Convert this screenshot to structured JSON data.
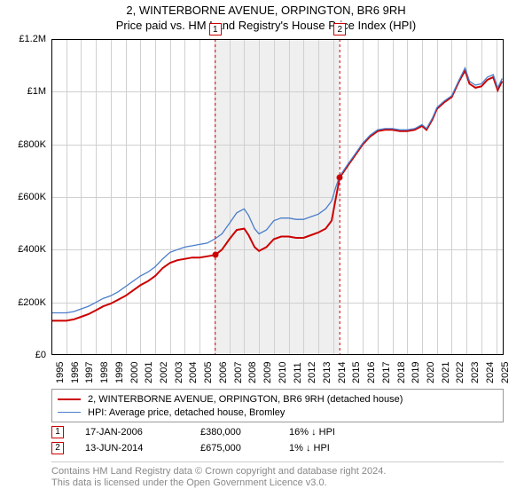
{
  "title_line1": "2, WINTERBORNE AVENUE, ORPINGTON, BR6 9RH",
  "title_line2": "Price paid vs. HM Land Registry's House Price Index (HPI)",
  "chart": {
    "type": "line",
    "x_start": 1995.0,
    "x_end": 2025.5,
    "y_start": 0,
    "y_end": 1200000,
    "y_ticks": [
      {
        "v": 0,
        "label": "£0"
      },
      {
        "v": 200000,
        "label": "£200K"
      },
      {
        "v": 400000,
        "label": "£400K"
      },
      {
        "v": 600000,
        "label": "£600K"
      },
      {
        "v": 800000,
        "label": "£800K"
      },
      {
        "v": 1000000,
        "label": "£1M"
      },
      {
        "v": 1200000,
        "label": "£1.2M"
      }
    ],
    "x_ticks": [
      1995,
      1996,
      1997,
      1998,
      1999,
      2000,
      2001,
      2002,
      2003,
      2004,
      2005,
      2006,
      2007,
      2008,
      2009,
      2010,
      2011,
      2012,
      2013,
      2014,
      2015,
      2016,
      2017,
      2018,
      2019,
      2020,
      2021,
      2022,
      2023,
      2024,
      2025
    ],
    "grid_color": "#d0d0d0",
    "background_color": "#ffffff",
    "series": [
      {
        "name": "property",
        "color": "#cc0000",
        "width": 2.0,
        "points": [
          [
            1995.0,
            130000
          ],
          [
            1995.5,
            130000
          ],
          [
            1996.0,
            130000
          ],
          [
            1996.5,
            135000
          ],
          [
            1997.0,
            145000
          ],
          [
            1997.5,
            155000
          ],
          [
            1998.0,
            170000
          ],
          [
            1998.5,
            185000
          ],
          [
            1999.0,
            195000
          ],
          [
            1999.5,
            210000
          ],
          [
            2000.0,
            225000
          ],
          [
            2000.5,
            245000
          ],
          [
            2001.0,
            265000
          ],
          [
            2001.5,
            280000
          ],
          [
            2002.0,
            300000
          ],
          [
            2002.5,
            330000
          ],
          [
            2003.0,
            350000
          ],
          [
            2003.5,
            360000
          ],
          [
            2004.0,
            365000
          ],
          [
            2004.5,
            370000
          ],
          [
            2005.0,
            370000
          ],
          [
            2005.5,
            375000
          ],
          [
            2006.05,
            380000
          ],
          [
            2006.5,
            400000
          ],
          [
            2007.0,
            440000
          ],
          [
            2007.5,
            475000
          ],
          [
            2008.0,
            480000
          ],
          [
            2008.3,
            455000
          ],
          [
            2008.7,
            410000
          ],
          [
            2009.0,
            395000
          ],
          [
            2009.5,
            410000
          ],
          [
            2010.0,
            440000
          ],
          [
            2010.5,
            450000
          ],
          [
            2011.0,
            450000
          ],
          [
            2011.5,
            445000
          ],
          [
            2012.0,
            445000
          ],
          [
            2012.5,
            455000
          ],
          [
            2013.0,
            465000
          ],
          [
            2013.5,
            480000
          ],
          [
            2013.9,
            510000
          ],
          [
            2014.2,
            600000
          ],
          [
            2014.45,
            675000
          ],
          [
            2014.7,
            695000
          ],
          [
            2015.0,
            720000
          ],
          [
            2015.5,
            760000
          ],
          [
            2016.0,
            800000
          ],
          [
            2016.5,
            830000
          ],
          [
            2017.0,
            850000
          ],
          [
            2017.5,
            855000
          ],
          [
            2018.0,
            855000
          ],
          [
            2018.5,
            850000
          ],
          [
            2019.0,
            850000
          ],
          [
            2019.5,
            855000
          ],
          [
            2020.0,
            870000
          ],
          [
            2020.3,
            855000
          ],
          [
            2020.7,
            895000
          ],
          [
            2021.0,
            935000
          ],
          [
            2021.5,
            960000
          ],
          [
            2022.0,
            980000
          ],
          [
            2022.5,
            1040000
          ],
          [
            2022.9,
            1080000
          ],
          [
            2023.2,
            1030000
          ],
          [
            2023.6,
            1015000
          ],
          [
            2024.0,
            1020000
          ],
          [
            2024.4,
            1045000
          ],
          [
            2024.8,
            1055000
          ],
          [
            2025.1,
            1005000
          ],
          [
            2025.4,
            1040000
          ]
        ]
      },
      {
        "name": "hpi",
        "color": "#4a7dc9",
        "width": 1.3,
        "points": [
          [
            1995.0,
            160000
          ],
          [
            1995.5,
            160000
          ],
          [
            1996.0,
            160000
          ],
          [
            1996.5,
            165000
          ],
          [
            1997.0,
            175000
          ],
          [
            1997.5,
            185000
          ],
          [
            1998.0,
            200000
          ],
          [
            1998.5,
            215000
          ],
          [
            1999.0,
            225000
          ],
          [
            1999.5,
            240000
          ],
          [
            2000.0,
            260000
          ],
          [
            2000.5,
            280000
          ],
          [
            2001.0,
            300000
          ],
          [
            2001.5,
            315000
          ],
          [
            2002.0,
            335000
          ],
          [
            2002.5,
            365000
          ],
          [
            2003.0,
            390000
          ],
          [
            2003.5,
            400000
          ],
          [
            2004.0,
            410000
          ],
          [
            2004.5,
            415000
          ],
          [
            2005.0,
            420000
          ],
          [
            2005.5,
            425000
          ],
          [
            2006.0,
            440000
          ],
          [
            2006.5,
            460000
          ],
          [
            2007.0,
            500000
          ],
          [
            2007.5,
            540000
          ],
          [
            2008.0,
            555000
          ],
          [
            2008.3,
            530000
          ],
          [
            2008.7,
            480000
          ],
          [
            2009.0,
            460000
          ],
          [
            2009.5,
            475000
          ],
          [
            2010.0,
            510000
          ],
          [
            2010.5,
            520000
          ],
          [
            2011.0,
            520000
          ],
          [
            2011.5,
            515000
          ],
          [
            2012.0,
            515000
          ],
          [
            2012.5,
            525000
          ],
          [
            2013.0,
            535000
          ],
          [
            2013.5,
            555000
          ],
          [
            2013.9,
            585000
          ],
          [
            2014.2,
            640000
          ],
          [
            2014.45,
            680000
          ],
          [
            2014.7,
            700000
          ],
          [
            2015.0,
            725000
          ],
          [
            2015.5,
            765000
          ],
          [
            2016.0,
            805000
          ],
          [
            2016.5,
            835000
          ],
          [
            2017.0,
            855000
          ],
          [
            2017.5,
            860000
          ],
          [
            2018.0,
            860000
          ],
          [
            2018.5,
            855000
          ],
          [
            2019.0,
            855000
          ],
          [
            2019.5,
            860000
          ],
          [
            2020.0,
            875000
          ],
          [
            2020.3,
            860000
          ],
          [
            2020.7,
            900000
          ],
          [
            2021.0,
            940000
          ],
          [
            2021.5,
            965000
          ],
          [
            2022.0,
            985000
          ],
          [
            2022.5,
            1045000
          ],
          [
            2022.9,
            1090000
          ],
          [
            2023.2,
            1040000
          ],
          [
            2023.6,
            1025000
          ],
          [
            2024.0,
            1030000
          ],
          [
            2024.4,
            1055000
          ],
          [
            2024.8,
            1065000
          ],
          [
            2025.1,
            1015000
          ],
          [
            2025.4,
            1050000
          ]
        ]
      }
    ],
    "sale_markers": [
      {
        "n": "1",
        "x": 2006.05,
        "y": 380000
      },
      {
        "n": "2",
        "x": 2014.45,
        "y": 675000
      }
    ],
    "shade_start": 2006.05,
    "shade_end": 2014.45
  },
  "legend": {
    "items": [
      {
        "color": "#cc0000",
        "width": 2,
        "label": "2, WINTERBORNE AVENUE, ORPINGTON, BR6 9RH (detached house)"
      },
      {
        "color": "#4a7dc9",
        "width": 1.3,
        "label": "HPI: Average price, detached house, Bromley"
      }
    ]
  },
  "events": [
    {
      "n": "1",
      "date": "17-JAN-2006",
      "price": "£380,000",
      "pct": "16%",
      "arrow": "↓",
      "suffix": "HPI"
    },
    {
      "n": "2",
      "date": "13-JUN-2014",
      "price": "£675,000",
      "pct": "1%",
      "arrow": "↓",
      "suffix": "HPI"
    }
  ],
  "footer": {
    "line1": "Contains HM Land Registry data © Crown copyright and database right 2024.",
    "line2": "This data is licensed under the Open Government Licence v3.0."
  },
  "colors": {
    "grid": "#d0d0d0",
    "border": "#000000",
    "marker_border": "#cc0000",
    "footer_text": "#888888"
  }
}
